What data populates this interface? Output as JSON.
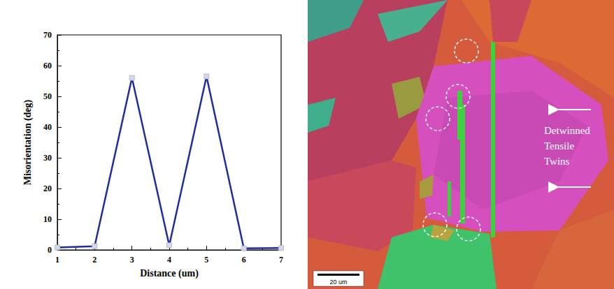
{
  "chart_data": {
    "type": "line",
    "x": [
      1,
      2,
      3,
      4,
      5,
      6,
      7
    ],
    "values": [
      0.8,
      1.2,
      56,
      1.5,
      56.5,
      0.5,
      0.6
    ],
    "color": "#1f2d9e",
    "marker": "square",
    "xlim": [
      1,
      7
    ],
    "xticks": [
      1,
      2,
      3,
      4,
      5,
      6,
      7
    ],
    "ylim": [
      0,
      70
    ],
    "yticks": [
      0,
      10,
      20,
      30,
      40,
      50,
      60,
      70
    ],
    "xlabel": "Distance (um)",
    "ylabel": "Misorientation (deg)",
    "grid": false
  },
  "micrograph": {
    "annotation": "Detwinned Tensile Twins",
    "scale_bar": "20 um"
  }
}
